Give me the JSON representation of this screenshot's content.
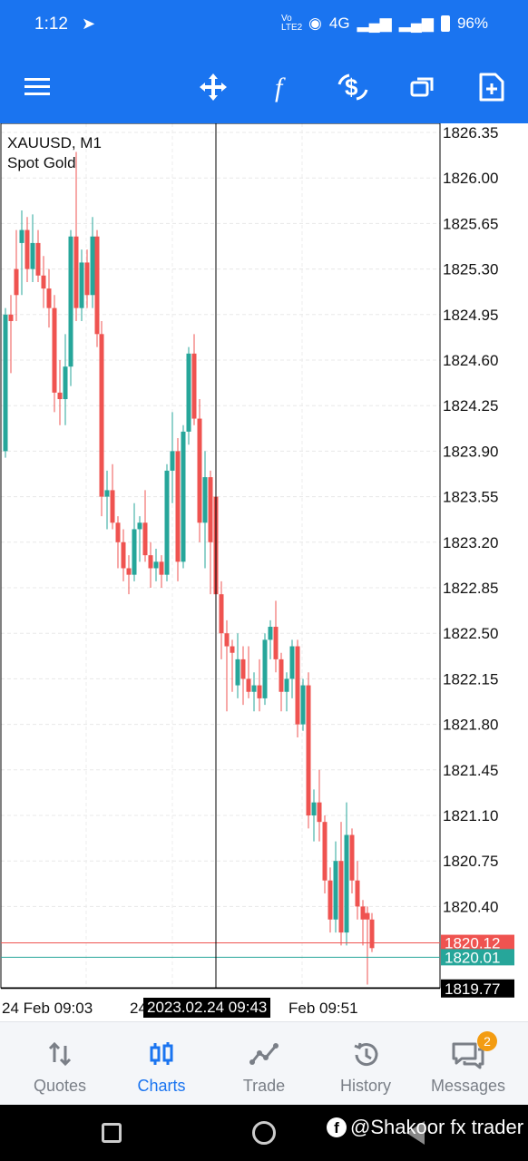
{
  "status_bar": {
    "time": "1:12",
    "network": "4G",
    "volte": "Vo LTE2",
    "battery": "96%"
  },
  "toolbar": {
    "icons": [
      "menu-icon",
      "crosshair-icon",
      "function-icon",
      "currency-icon",
      "window-icon",
      "new-order-icon"
    ]
  },
  "chart": {
    "symbol": "XAUUSD, M1",
    "description": "Spot Gold",
    "price_labels": [
      "1826.35",
      "1826.00",
      "1825.65",
      "1825.30",
      "1824.95",
      "1824.60",
      "1824.25",
      "1823.90",
      "1823.55",
      "1823.20",
      "1822.85",
      "1822.50",
      "1822.15",
      "1821.80",
      "1821.45",
      "1821.10",
      "1820.75",
      "1820.40"
    ],
    "ask_label": "1820.12",
    "bid_label": "1820.01",
    "cursor_price": "1819.77",
    "time_left": "24 Feb 09:03",
    "time_cursor": "2023.02.24 09:43",
    "time_left_fragment": "24",
    "time_right": "Feb 09:51",
    "colors": {
      "bull": "#26a69a",
      "bear": "#ef5350",
      "ask_line": "#ef5350",
      "bid_line": "#26a69a"
    }
  },
  "tabs": [
    {
      "label": "Quotes"
    },
    {
      "label": "Charts"
    },
    {
      "label": "Trade"
    },
    {
      "label": "History"
    },
    {
      "label": "Messages",
      "badge": "2"
    }
  ],
  "watermark": "@Shakoor fx trader"
}
